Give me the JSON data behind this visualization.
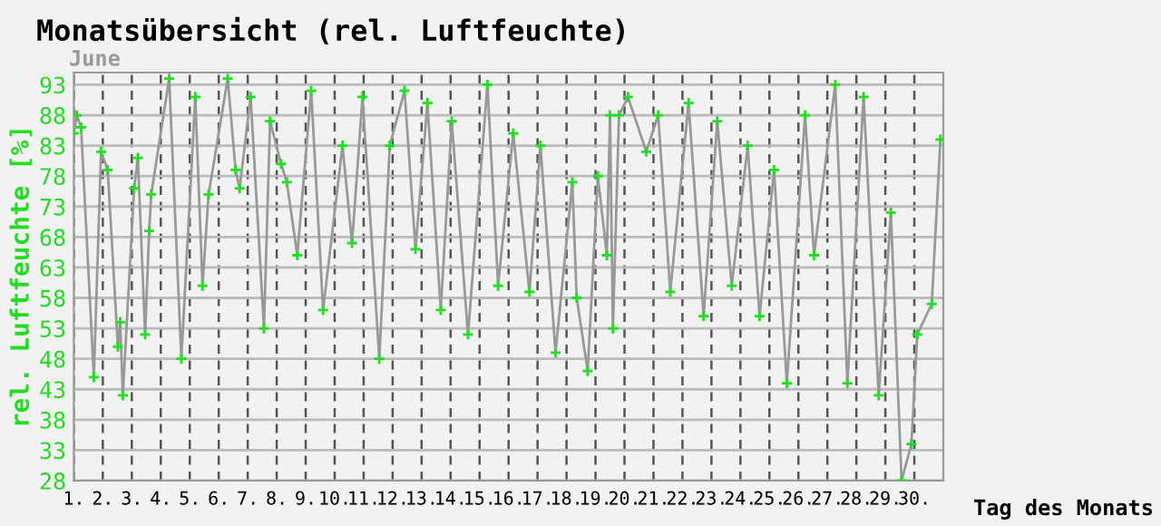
{
  "chart_data": {
    "type": "line",
    "title": "Monatsübersicht (rel. Luftfeuchte)",
    "subtitle": "June",
    "xlabel": "Tag des Monats",
    "ylabel": "rel. Luftfeuchte [%]",
    "series": [
      {
        "color": "#22dd22",
        "marker": "cross",
        "x": [
          1.0,
          1.1,
          1.25,
          1.69,
          1.94,
          2.17,
          2.52,
          2.6,
          2.69,
          3.08,
          3.21,
          3.46,
          3.6,
          3.67,
          4.29,
          4.71,
          5.19,
          5.44,
          5.65,
          6.31,
          6.58,
          6.72,
          7.1,
          7.56,
          7.77,
          8.15,
          8.35,
          8.71,
          9.19,
          9.6,
          10.27,
          10.6,
          10.96,
          11.54,
          11.9,
          12.41,
          12.79,
          13.2,
          13.66,
          14.04,
          14.6,
          15.27,
          15.64,
          16.16,
          16.72,
          17.1,
          17.62,
          18.2,
          18.35,
          18.73,
          19.08,
          19.39,
          19.5,
          19.6,
          19.81,
          20.12,
          20.75,
          21.16,
          21.58,
          22.21,
          22.73,
          23.2,
          23.7,
          24.25,
          24.66,
          25.16,
          25.6,
          26.23,
          26.54,
          27.27,
          27.69,
          28.25,
          28.77,
          29.19,
          29.56,
          29.9,
          30.1,
          30.6,
          30.9
        ],
        "values": [
          85,
          88,
          86,
          45,
          82,
          79,
          50,
          54,
          42,
          76,
          81,
          52,
          69,
          75,
          94,
          48,
          91,
          60,
          75,
          94,
          79,
          76,
          91,
          53,
          87,
          80,
          77,
          65,
          92,
          56,
          83,
          67,
          91,
          48,
          83,
          92,
          66,
          90,
          56,
          87,
          52,
          93,
          60,
          85,
          59,
          83,
          49,
          77,
          58,
          46,
          78,
          65,
          88,
          53,
          88,
          91,
          82,
          88,
          59,
          90,
          55,
          87,
          60,
          83,
          55,
          79,
          44,
          88,
          65,
          93,
          44,
          91,
          42,
          72,
          28,
          34,
          52,
          57,
          84
        ]
      }
    ],
    "xlim": [
      1,
      31
    ],
    "ylim": [
      28,
      95
    ],
    "xticks": [
      {
        "value": 1,
        "label": "1."
      },
      {
        "value": 2,
        "label": "2."
      },
      {
        "value": 3,
        "label": "3."
      },
      {
        "value": 4,
        "label": "4."
      },
      {
        "value": 5,
        "label": "5."
      },
      {
        "value": 6,
        "label": "6."
      },
      {
        "value": 7,
        "label": "7."
      },
      {
        "value": 8,
        "label": "8."
      },
      {
        "value": 9,
        "label": "9."
      },
      {
        "value": 10,
        "label": "10."
      },
      {
        "value": 11,
        "label": "11."
      },
      {
        "value": 12,
        "label": "12."
      },
      {
        "value": 13,
        "label": "13."
      },
      {
        "value": 14,
        "label": "14."
      },
      {
        "value": 15,
        "label": "15."
      },
      {
        "value": 16,
        "label": "16."
      },
      {
        "value": 17,
        "label": "17."
      },
      {
        "value": 18,
        "label": "18."
      },
      {
        "value": 19,
        "label": "19."
      },
      {
        "value": 20,
        "label": "20."
      },
      {
        "value": 21,
        "label": "21."
      },
      {
        "value": 22,
        "label": "22."
      },
      {
        "value": 23,
        "label": "23."
      },
      {
        "value": 24,
        "label": "24."
      },
      {
        "value": 25,
        "label": "25."
      },
      {
        "value": 26,
        "label": "26."
      },
      {
        "value": 27,
        "label": "27."
      },
      {
        "value": 28,
        "label": "28."
      },
      {
        "value": 29,
        "label": "29."
      },
      {
        "value": 30,
        "label": "30."
      }
    ],
    "yticks": [
      28,
      33,
      38,
      43,
      48,
      53,
      58,
      63,
      68,
      73,
      78,
      83,
      88,
      93
    ],
    "grid": true,
    "legend": false
  }
}
